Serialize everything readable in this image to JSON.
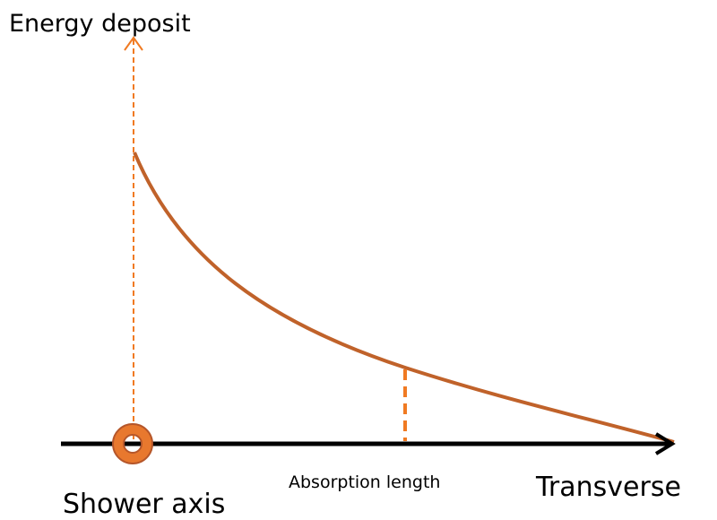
{
  "header": {
    "title": "Energy deposit"
  },
  "labels": {
    "shower_axis": "Shower axis",
    "absorption_length": "Absorption length",
    "transverse": "Transverse"
  }
}
